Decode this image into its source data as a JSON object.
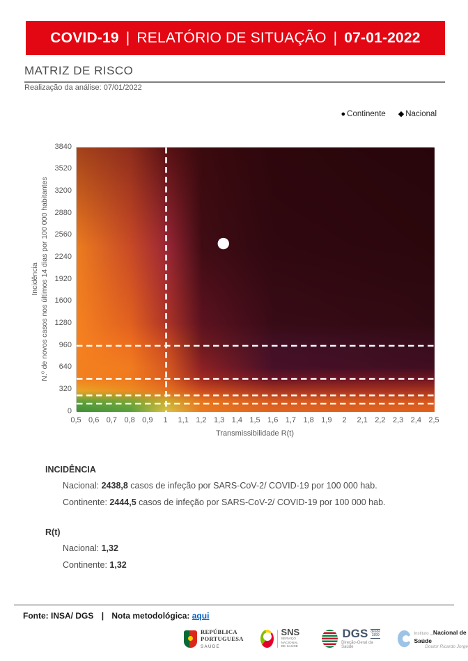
{
  "banner": {
    "part1": "COVID-19",
    "sep1": "|",
    "part2": "RELATÓRIO DE SITUAÇÃO",
    "sep2": "|",
    "date": "07-01-2022",
    "bg_color": "#e30613"
  },
  "page": {
    "section_title": "MATRIZ DE RISCO",
    "analysis_date": "Realização da análise: 07/01/2022"
  },
  "legend": {
    "items": [
      {
        "marker": "●",
        "label": "Continente"
      },
      {
        "marker": "◆",
        "label": "Nacional"
      }
    ]
  },
  "chart_data": {
    "type": "heatmap",
    "title": "MATRIZ DE RISCO",
    "xlabel": "Transmissibilidade R(t)",
    "ylabel_line1": "Incidência",
    "ylabel_line2": "N.º de novos casos nos últimos 14 dias por 100 000 habitantes",
    "xlim": [
      0.5,
      2.5
    ],
    "ylim": [
      0,
      3840
    ],
    "x_ticks": [
      "0,5",
      "0,6",
      "0,7",
      "0,8",
      "0,9",
      "1",
      "1,1",
      "1,2",
      "1,3",
      "1,4",
      "1,5",
      "1,6",
      "1,7",
      "1,8",
      "1,9",
      "2",
      "2,1",
      "2,2",
      "2,3",
      "2,4",
      "2,5"
    ],
    "y_ticks": [
      "3840",
      "3520",
      "3200",
      "2880",
      "2560",
      "2240",
      "1920",
      "1600",
      "1280",
      "960",
      "640",
      "320",
      "0"
    ],
    "threshold_lines": {
      "vertical_x": 1.0,
      "horizontal_y": [
        960,
        480,
        240,
        120
      ],
      "color": "#ffffff",
      "style": "dashed"
    },
    "points": [
      {
        "name": "Nacional",
        "marker": "diamond",
        "x": 1.32,
        "y": 2438.8,
        "color": "#ffffff"
      },
      {
        "name": "Continente",
        "marker": "circle",
        "x": 1.32,
        "y": 2444.5,
        "color": "#ffffff"
      }
    ],
    "background_field": {
      "x": [
        0.5,
        0.8,
        1.0,
        1.2,
        1.6,
        2.5
      ],
      "y": [
        3840,
        2400,
        1280,
        960,
        640,
        480,
        300,
        150,
        0
      ],
      "colors": [
        [
          "#a5431b",
          "#8f2d1c",
          "#5a1214",
          "#3a0a0e",
          "#2d070c",
          "#27060b"
        ],
        [
          "#ec7c1f",
          "#c84a26",
          "#9c2736",
          "#400c14",
          "#300810",
          "#2b070c"
        ],
        [
          "#f58120",
          "#e1611f",
          "#b03528",
          "#5c1220",
          "#380b16",
          "#300a12"
        ],
        [
          "#f58120",
          "#ee6f1e",
          "#cc4a20",
          "#6e1a1e",
          "#421026",
          "#390d1d"
        ],
        [
          "#f3801f",
          "#f07c1f",
          "#d85a20",
          "#8c2025",
          "#471027",
          "#400e20"
        ],
        [
          "#f3801f",
          "#ef7a1e",
          "#dc5e1e",
          "#a02a20",
          "#6b1425",
          "#701522"
        ],
        [
          "#e8a625",
          "#ec8c20",
          "#e47420",
          "#cc4c1e",
          "#a83620",
          "#aa341e"
        ],
        [
          "#5fa23a",
          "#7aa636",
          "#ccac2e",
          "#e8761e",
          "#d85c20",
          "#d8581e"
        ],
        [
          "#3f9039",
          "#57a23c",
          "#d8c244",
          "#ea7a1e",
          "#e06420",
          "#e0601e"
        ]
      ]
    }
  },
  "incidence": {
    "heading": "INCIDÊNCIA",
    "items": [
      {
        "prefix": "Nacional: ",
        "value": "2438,8",
        "suffix": " casos de infeção por SARS-CoV-2/ COVID-19 por 100 000 hab."
      },
      {
        "prefix": "Continente: ",
        "value": "2444,5",
        "suffix": " casos de infeção por SARS-CoV-2/ COVID-19 por 100 000 hab."
      }
    ]
  },
  "rt": {
    "heading": "R(t)",
    "items": [
      {
        "prefix": "Nacional: ",
        "value": "1,32"
      },
      {
        "prefix": "Continente: ",
        "value": "1,32"
      }
    ]
  },
  "footer": {
    "source": "Fonte: INSA/ DGS",
    "separator": "|",
    "note_label": "Nota metodológica:",
    "link_label": "aqui",
    "link_color": "#0563c1"
  },
  "logos": [
    {
      "id": "republica-portuguesa",
      "line1": "REPÚBLICA",
      "line2": "PORTUGUESA",
      "sub": "SAÚDE"
    },
    {
      "id": "sns",
      "name": "SNS",
      "sub1": "SERVIÇO NACIONAL",
      "sub2": "DE SAÚDE"
    },
    {
      "id": "dgs",
      "name": "DGS",
      "since1": "desde",
      "since2": "1899",
      "sub": "Direção-Geral da Saúde"
    },
    {
      "id": "insa",
      "pre": "Instituto ",
      "name": "_Nacional de Saúde",
      "sub": "Doutor Ricardo Jorge"
    }
  ]
}
